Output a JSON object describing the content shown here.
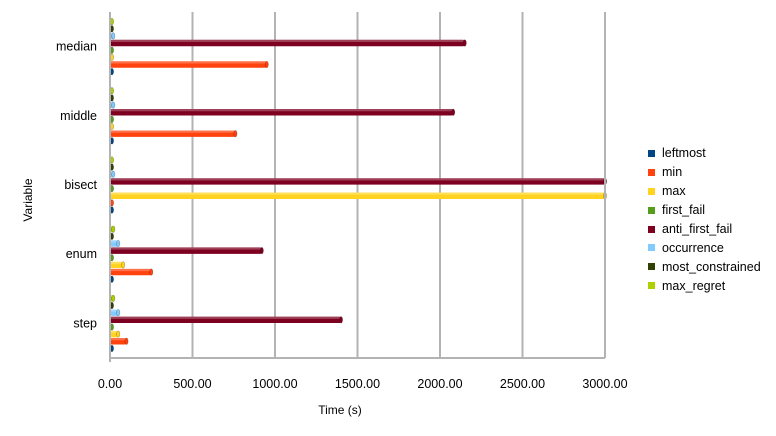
{
  "chart_data": {
    "type": "bar",
    "orientation": "horizontal",
    "xlabel": "Time (s)",
    "ylabel": "Variable",
    "xlim": [
      0,
      3000
    ],
    "xticks": [
      "0.00",
      "500.00",
      "1000.00",
      "1500.00",
      "2000.00",
      "2500.00",
      "3000.00"
    ],
    "grid": true,
    "legend_position": "right",
    "categories": [
      "median",
      "middle",
      "bisect",
      "enum",
      "step"
    ],
    "series": [
      {
        "name": "leftmost",
        "color": "#004586",
        "values": [
          5,
          5,
          5,
          10,
          5
        ]
      },
      {
        "name": "min",
        "color": "#ff420e",
        "values": [
          950,
          760,
          5,
          250,
          100
        ]
      },
      {
        "name": "max",
        "color": "#ffd320",
        "values": [
          10,
          10,
          3000,
          80,
          50
        ]
      },
      {
        "name": "first_fail",
        "color": "#579d1c",
        "values": [
          5,
          5,
          5,
          5,
          5
        ]
      },
      {
        "name": "anti_first_fail",
        "color": "#7e0021",
        "values": [
          2150,
          2080,
          3000,
          920,
          1400
        ]
      },
      {
        "name": "occurrence",
        "color": "#83caff",
        "values": [
          20,
          20,
          20,
          50,
          50
        ]
      },
      {
        "name": "most_constrained",
        "color": "#314004",
        "values": [
          5,
          5,
          5,
          5,
          5
        ]
      },
      {
        "name": "max_regret",
        "color": "#aecf00",
        "values": [
          10,
          10,
          10,
          20,
          20
        ]
      }
    ]
  }
}
